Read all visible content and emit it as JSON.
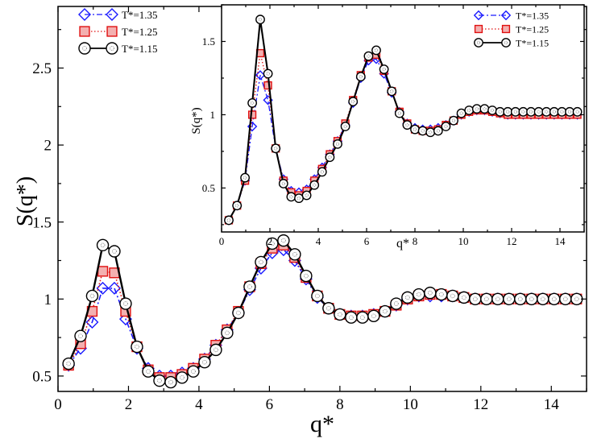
{
  "chart_data": [
    {
      "id": "main",
      "type": "line",
      "xlabel": "q*",
      "ylabel": "S(q*)",
      "xlim": [
        0,
        15
      ],
      "ylim": [
        0.4,
        2.9
      ],
      "xticks": [
        0,
        2,
        4,
        6,
        8,
        10,
        12,
        14
      ],
      "yticks": [
        0.5,
        1,
        1.5,
        2,
        2.5
      ],
      "xtick_labels": [
        "0",
        "2",
        "4",
        "6",
        "8",
        "10",
        "12",
        "14"
      ],
      "ytick_labels": [
        "0.5",
        "1",
        "1.5",
        "2",
        "2.5"
      ],
      "legend_position": "top-left",
      "series": [
        {
          "name": "T*=1.35",
          "color": "#1a1aff",
          "marker": "diamond",
          "line": "dash-dot",
          "x": [
            0.3,
            0.64,
            0.97,
            1.27,
            1.6,
            1.92,
            2.24,
            2.56,
            2.88,
            3.2,
            3.52,
            3.84,
            4.16,
            4.48,
            4.8,
            5.12,
            5.44,
            5.76,
            6.08,
            6.4,
            6.72,
            7.04,
            7.36,
            7.68,
            8.0,
            8.32,
            8.64,
            8.96,
            9.28,
            9.6,
            9.92,
            10.24,
            10.56,
            10.88,
            11.2,
            11.52,
            11.84,
            12.16,
            12.48,
            12.8,
            13.12,
            13.44,
            13.76,
            14.08,
            14.4,
            14.72
          ],
          "y": [
            0.57,
            0.68,
            0.85,
            1.07,
            1.07,
            0.87,
            0.68,
            0.55,
            0.5,
            0.5,
            0.52,
            0.55,
            0.61,
            0.7,
            0.8,
            0.91,
            1.06,
            1.2,
            1.3,
            1.32,
            1.25,
            1.13,
            1.01,
            0.94,
            0.9,
            0.89,
            0.89,
            0.9,
            0.92,
            0.96,
            1.0,
            1.02,
            1.02,
            1.02,
            1.02,
            1.01,
            1.0,
            1.0,
            1.0,
            1.0,
            1.0,
            1.0,
            1.0,
            1.0,
            1.0,
            1.0
          ]
        },
        {
          "name": "T*=1.25",
          "color": "#e01010",
          "marker": "square",
          "line": "dotted",
          "x": [
            0.3,
            0.64,
            0.97,
            1.27,
            1.6,
            1.92,
            2.24,
            2.56,
            2.88,
            3.2,
            3.52,
            3.84,
            4.16,
            4.48,
            4.8,
            5.12,
            5.44,
            5.76,
            6.08,
            6.4,
            6.72,
            7.04,
            7.36,
            7.68,
            8.0,
            8.32,
            8.64,
            8.96,
            9.28,
            9.6,
            9.92,
            10.24,
            10.56,
            10.88,
            11.2,
            11.52,
            11.84,
            12.16,
            12.48,
            12.8,
            13.12,
            13.44,
            13.76,
            14.08,
            14.4,
            14.72
          ],
          "y": [
            0.57,
            0.71,
            0.92,
            1.18,
            1.17,
            0.92,
            0.69,
            0.54,
            0.49,
            0.49,
            0.51,
            0.55,
            0.61,
            0.7,
            0.8,
            0.92,
            1.08,
            1.23,
            1.33,
            1.35,
            1.27,
            1.14,
            1.02,
            0.94,
            0.9,
            0.89,
            0.89,
            0.9,
            0.92,
            0.96,
            1.0,
            1.02,
            1.03,
            1.03,
            1.02,
            1.01,
            1.0,
            1.0,
            1.0,
            1.0,
            1.0,
            1.0,
            1.0,
            1.0,
            1.0,
            1.0
          ]
        },
        {
          "name": "T*=1.15",
          "color": "#000000",
          "marker": "circle",
          "line": "solid",
          "x": [
            0.3,
            0.64,
            0.97,
            1.27,
            1.6,
            1.92,
            2.24,
            2.56,
            2.88,
            3.2,
            3.52,
            3.84,
            4.16,
            4.48,
            4.8,
            5.12,
            5.44,
            5.76,
            6.08,
            6.4,
            6.72,
            7.04,
            7.36,
            7.68,
            8.0,
            8.32,
            8.64,
            8.96,
            9.28,
            9.6,
            9.92,
            10.24,
            10.56,
            10.88,
            11.2,
            11.52,
            11.84,
            12.16,
            12.48,
            12.8,
            13.12,
            13.44,
            13.76,
            14.08,
            14.4,
            14.72
          ],
          "y": [
            0.58,
            0.76,
            1.02,
            1.35,
            1.31,
            0.97,
            0.69,
            0.53,
            0.47,
            0.46,
            0.49,
            0.53,
            0.59,
            0.67,
            0.78,
            0.91,
            1.08,
            1.24,
            1.36,
            1.38,
            1.29,
            1.15,
            1.02,
            0.94,
            0.9,
            0.88,
            0.88,
            0.89,
            0.92,
            0.97,
            1.01,
            1.03,
            1.04,
            1.03,
            1.02,
            1.01,
            1.0,
            1.0,
            1.0,
            1.0,
            1.0,
            1.0,
            1.0,
            1.0,
            1.0,
            1.0
          ]
        }
      ]
    },
    {
      "id": "inset",
      "type": "line",
      "xlabel": "q*",
      "ylabel": "S(q*)",
      "xlim": [
        0,
        15
      ],
      "ylim": [
        0.2,
        1.75
      ],
      "xticks": [
        0,
        2,
        4,
        6,
        8,
        10,
        12,
        14
      ],
      "yticks": [
        0.5,
        1,
        1.5
      ],
      "xtick_labels": [
        "0",
        "2",
        "4",
        "6",
        "8",
        "10",
        "12",
        "14"
      ],
      "ytick_labels": [
        "0.5",
        "1",
        "1.5"
      ],
      "legend_position": "top-right",
      "series": [
        {
          "name": "T*=1.35",
          "color": "#1a1aff",
          "marker": "diamond",
          "line": "dash-dot",
          "x": [
            0.3,
            0.64,
            0.97,
            1.27,
            1.6,
            1.92,
            2.24,
            2.56,
            2.88,
            3.2,
            3.52,
            3.84,
            4.16,
            4.48,
            4.8,
            5.12,
            5.44,
            5.76,
            6.08,
            6.4,
            6.72,
            7.04,
            7.36,
            7.68,
            8.0,
            8.32,
            8.64,
            8.96,
            9.28,
            9.6,
            9.92,
            10.24,
            10.56,
            10.88,
            11.2,
            11.52,
            11.84,
            12.16,
            12.48,
            12.8,
            13.12,
            13.44,
            13.76,
            14.08,
            14.4,
            14.72
          ],
          "y": [
            0.28,
            0.38,
            0.55,
            0.92,
            1.27,
            1.1,
            0.77,
            0.56,
            0.48,
            0.47,
            0.49,
            0.56,
            0.64,
            0.73,
            0.82,
            0.93,
            1.08,
            1.25,
            1.37,
            1.38,
            1.28,
            1.15,
            1.02,
            0.94,
            0.91,
            0.9,
            0.9,
            0.91,
            0.93,
            0.96,
            1.0,
            1.02,
            1.03,
            1.03,
            1.02,
            1.01,
            1.0,
            1.0,
            1.0,
            1.0,
            1.0,
            1.0,
            1.0,
            1.0,
            1.0,
            1.0
          ]
        },
        {
          "name": "T*=1.25",
          "color": "#e01010",
          "marker": "square",
          "line": "dotted",
          "x": [
            0.3,
            0.64,
            0.97,
            1.27,
            1.6,
            1.92,
            2.24,
            2.56,
            2.88,
            3.2,
            3.52,
            3.84,
            4.16,
            4.48,
            4.8,
            5.12,
            5.44,
            5.76,
            6.08,
            6.4,
            6.72,
            7.04,
            7.36,
            7.68,
            8.0,
            8.32,
            8.64,
            8.96,
            9.28,
            9.6,
            9.92,
            10.24,
            10.56,
            10.88,
            11.2,
            11.52,
            11.84,
            12.16,
            12.48,
            12.8,
            13.12,
            13.44,
            13.76,
            14.08,
            14.4,
            14.72
          ],
          "y": [
            0.28,
            0.38,
            0.55,
            1.0,
            1.42,
            1.2,
            0.77,
            0.55,
            0.47,
            0.45,
            0.48,
            0.55,
            0.63,
            0.73,
            0.82,
            0.94,
            1.1,
            1.27,
            1.39,
            1.41,
            1.3,
            1.16,
            1.02,
            0.94,
            0.9,
            0.89,
            0.89,
            0.9,
            0.93,
            0.96,
            1.0,
            1.02,
            1.03,
            1.03,
            1.02,
            1.01,
            1.0,
            1.0,
            1.0,
            1.0,
            1.0,
            1.0,
            1.0,
            1.0,
            1.0,
            1.0
          ]
        },
        {
          "name": "T*=1.15",
          "color": "#000000",
          "marker": "circle",
          "line": "solid",
          "x": [
            0.3,
            0.64,
            0.97,
            1.27,
            1.6,
            1.92,
            2.24,
            2.56,
            2.88,
            3.2,
            3.52,
            3.84,
            4.16,
            4.48,
            4.8,
            5.12,
            5.44,
            5.76,
            6.08,
            6.4,
            6.72,
            7.04,
            7.36,
            7.68,
            8.0,
            8.32,
            8.64,
            8.96,
            9.28,
            9.6,
            9.92,
            10.24,
            10.56,
            10.88,
            11.2,
            11.52,
            11.84,
            12.16,
            12.48,
            12.8,
            13.12,
            13.44,
            13.76,
            14.08,
            14.4,
            14.72
          ],
          "y": [
            0.28,
            0.38,
            0.57,
            1.08,
            1.65,
            1.28,
            0.77,
            0.53,
            0.44,
            0.43,
            0.45,
            0.52,
            0.61,
            0.71,
            0.8,
            0.92,
            1.09,
            1.26,
            1.4,
            1.44,
            1.31,
            1.16,
            1.01,
            0.93,
            0.9,
            0.89,
            0.88,
            0.89,
            0.92,
            0.96,
            1.01,
            1.03,
            1.04,
            1.04,
            1.03,
            1.02,
            1.02,
            1.02,
            1.02,
            1.02,
            1.02,
            1.02,
            1.02,
            1.02,
            1.02,
            1.02
          ]
        }
      ]
    }
  ]
}
